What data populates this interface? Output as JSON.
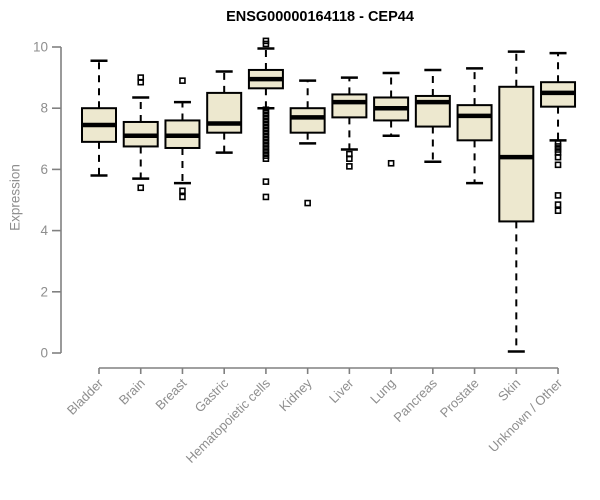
{
  "colors": {
    "box_fill": "#EDE8CF",
    "box_stroke": "#000000",
    "median": "#000000",
    "whisker": "#000000",
    "outlier": "#000000",
    "axis_line": "#808080",
    "axis_text": "#8e8e8e",
    "title_text": "#000000",
    "background": "#ffffff"
  },
  "chart_data": {
    "type": "boxplot",
    "title": "ENSG00000164118 - CEP44",
    "xlabel": "",
    "ylabel": "Expression",
    "ylim": [
      0,
      10
    ],
    "yticks": [
      0,
      2,
      4,
      6,
      8,
      10
    ],
    "grid": false,
    "legend": false,
    "categories": [
      "Bladder",
      "Brain",
      "Breast",
      "Gastric",
      "Hematopoietic cells",
      "Kidney",
      "Liver",
      "Lung",
      "Pancreas",
      "Prostate",
      "Skin",
      "Unknown / Other"
    ],
    "series": [
      {
        "name": "Bladder",
        "low": 5.8,
        "q1": 6.9,
        "median": 7.45,
        "q3": 8.0,
        "high": 9.55,
        "outliers": []
      },
      {
        "name": "Brain",
        "low": 5.7,
        "q1": 6.75,
        "median": 7.1,
        "q3": 7.55,
        "high": 8.35,
        "outliers": [
          9.0,
          8.85,
          5.4
        ]
      },
      {
        "name": "Breast",
        "low": 5.55,
        "q1": 6.7,
        "median": 7.1,
        "q3": 7.6,
        "high": 8.2,
        "outliers": [
          8.9,
          5.3,
          5.1
        ]
      },
      {
        "name": "Gastric",
        "low": 6.55,
        "q1": 7.2,
        "median": 7.5,
        "q3": 8.5,
        "high": 9.2,
        "outliers": []
      },
      {
        "name": "Hematopoietic cells",
        "low": 8.0,
        "q1": 8.65,
        "median": 8.95,
        "q3": 9.25,
        "high": 9.95,
        "outliers": [
          10.2,
          10.1,
          7.95,
          7.85,
          7.75,
          7.65,
          7.55,
          7.45,
          7.35,
          7.25,
          7.15,
          7.05,
          6.95,
          6.85,
          6.75,
          6.65,
          6.55,
          6.45,
          6.35,
          5.6,
          5.1
        ]
      },
      {
        "name": "Kidney",
        "low": 6.85,
        "q1": 7.2,
        "median": 7.7,
        "q3": 8.0,
        "high": 8.9,
        "outliers": [
          4.9
        ]
      },
      {
        "name": "Liver",
        "low": 6.65,
        "q1": 7.7,
        "median": 8.2,
        "q3": 8.45,
        "high": 9.0,
        "outliers": [
          6.5,
          6.35,
          6.1
        ]
      },
      {
        "name": "Lung",
        "low": 7.1,
        "q1": 7.6,
        "median": 8.0,
        "q3": 8.35,
        "high": 9.15,
        "outliers": [
          6.2
        ]
      },
      {
        "name": "Pancreas",
        "low": 6.25,
        "q1": 7.4,
        "median": 8.2,
        "q3": 8.4,
        "high": 9.25,
        "outliers": []
      },
      {
        "name": "Prostate",
        "low": 5.55,
        "q1": 6.95,
        "median": 7.75,
        "q3": 8.1,
        "high": 9.3,
        "outliers": []
      },
      {
        "name": "Skin",
        "low": 0.05,
        "q1": 4.3,
        "median": 6.4,
        "q3": 8.7,
        "high": 9.85,
        "outliers": []
      },
      {
        "name": "Unknown / Other",
        "low": 6.95,
        "q1": 8.05,
        "median": 8.5,
        "q3": 8.85,
        "high": 9.8,
        "outliers": [
          6.85,
          6.75,
          6.65,
          6.55,
          6.4,
          6.15,
          5.15,
          4.85,
          4.65
        ]
      }
    ]
  }
}
